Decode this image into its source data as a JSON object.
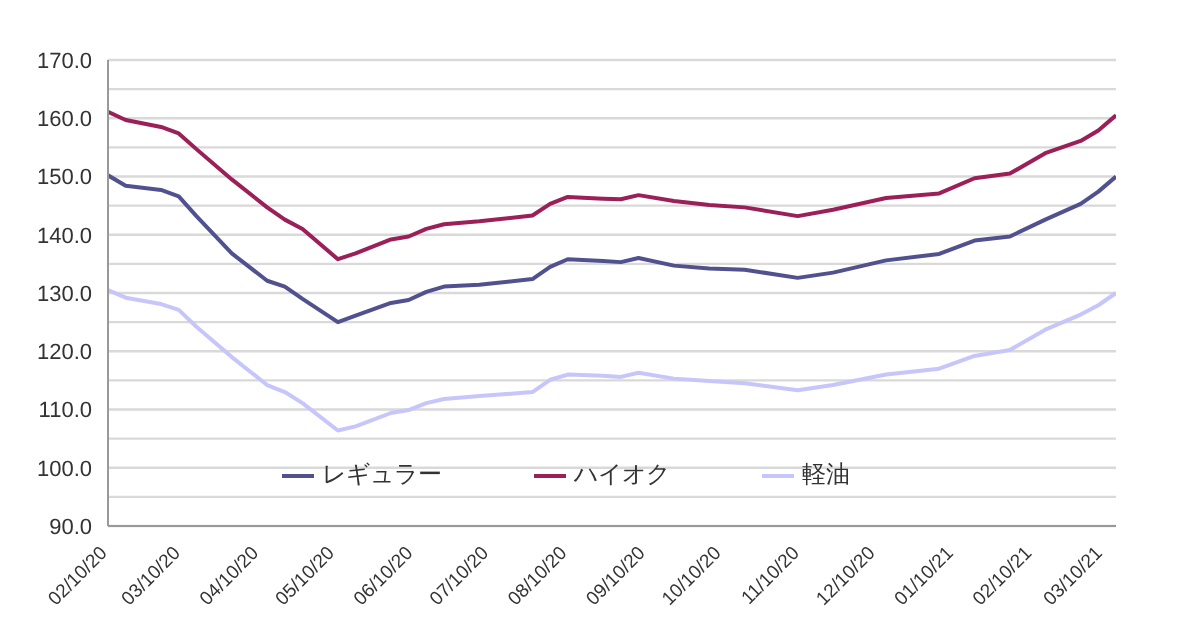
{
  "chart_data": {
    "type": "line",
    "x": [
      "2020-02-10",
      "2020-02-17",
      "2020-03-02",
      "2020-03-09",
      "2020-03-16",
      "2020-03-30",
      "2020-04-13",
      "2020-04-20",
      "2020-04-27",
      "2020-05-11",
      "2020-05-18",
      "2020-06-01",
      "2020-06-08",
      "2020-06-15",
      "2020-06-22",
      "2020-07-06",
      "2020-07-27",
      "2020-08-03",
      "2020-08-10",
      "2020-08-24",
      "2020-08-31",
      "2020-09-07",
      "2020-09-21",
      "2020-10-05",
      "2020-10-19",
      "2020-11-09",
      "2020-11-23",
      "2020-12-14",
      "2021-01-04",
      "2021-01-18",
      "2021-02-01",
      "2021-02-15",
      "2021-03-01",
      "2021-03-08",
      "2021-03-15"
    ],
    "series": [
      {
        "name": "レギュラー",
        "color": "#51518f",
        "values": [
          150.2,
          148.4,
          147.7,
          146.6,
          143.2,
          136.8,
          132.1,
          131.1,
          129,
          125,
          126.1,
          128.3,
          128.8,
          130.2,
          131.1,
          131.4,
          132.4,
          134.5,
          135.8,
          135.5,
          135.3,
          136,
          134.7,
          134.2,
          134,
          132.6,
          133.5,
          135.6,
          136.7,
          139,
          139.7,
          142.6,
          145.3,
          147.4,
          150
        ]
      },
      {
        "name": "ハイオク",
        "color": "#9b1f58",
        "values": [
          161.1,
          159.7,
          158.5,
          157.4,
          154.7,
          149.5,
          144.7,
          142.6,
          141,
          135.8,
          136.8,
          139.2,
          139.7,
          141,
          141.8,
          142.3,
          143.3,
          145.3,
          146.5,
          146.2,
          146.1,
          146.8,
          145.8,
          145.1,
          144.7,
          143.2,
          144.3,
          146.3,
          147.1,
          149.7,
          150.5,
          154,
          156.1,
          157.9,
          160.5
        ]
      },
      {
        "name": "軽油",
        "color": "#c6c6fb",
        "values": [
          130.5,
          129.2,
          128.1,
          127.1,
          124.2,
          119,
          114.2,
          113,
          111.1,
          106.4,
          107.1,
          109.4,
          109.9,
          111.1,
          111.8,
          112.3,
          113,
          115.1,
          116,
          115.8,
          115.6,
          116.3,
          115.3,
          114.9,
          114.5,
          113.3,
          114.2,
          116,
          117,
          119.2,
          120.2,
          123.7,
          126.3,
          127.9,
          130
        ]
      }
    ],
    "xlim": [
      "2020-02-10",
      "2021-03-15"
    ],
    "xticks": [
      {
        "value": "2020-02-10",
        "label": "02/10/20"
      },
      {
        "value": "2020-03-10",
        "label": "03/10/20"
      },
      {
        "value": "2020-04-10",
        "label": "04/10/20"
      },
      {
        "value": "2020-05-10",
        "label": "05/10/20"
      },
      {
        "value": "2020-06-10",
        "label": "06/10/20"
      },
      {
        "value": "2020-07-10",
        "label": "07/10/20"
      },
      {
        "value": "2020-08-10",
        "label": "08/10/20"
      },
      {
        "value": "2020-09-10",
        "label": "09/10/20"
      },
      {
        "value": "2020-10-10",
        "label": "10/10/20"
      },
      {
        "value": "2020-11-10",
        "label": "11/10/20"
      },
      {
        "value": "2020-12-10",
        "label": "12/10/20"
      },
      {
        "value": "2021-01-10",
        "label": "01/10/21"
      },
      {
        "value": "2021-02-10",
        "label": "02/10/21"
      },
      {
        "value": "2021-03-10",
        "label": "03/10/21"
      }
    ],
    "ylim": [
      90,
      170
    ],
    "yticks": [
      {
        "value": 90,
        "label": "90.0"
      },
      {
        "value": 95,
        "label": null
      },
      {
        "value": 100,
        "label": "100.0"
      },
      {
        "value": 105,
        "label": null
      },
      {
        "value": 110,
        "label": "110.0"
      },
      {
        "value": 115,
        "label": null
      },
      {
        "value": 120,
        "label": "120.0"
      },
      {
        "value": 125,
        "label": null
      },
      {
        "value": 130,
        "label": "130.0"
      },
      {
        "value": 135,
        "label": null
      },
      {
        "value": 140,
        "label": "140.0"
      },
      {
        "value": 145,
        "label": null
      },
      {
        "value": 150,
        "label": "150.0"
      },
      {
        "value": 155,
        "label": null
      },
      {
        "value": 160,
        "label": "160.0"
      },
      {
        "value": 165,
        "label": null
      },
      {
        "value": 170,
        "label": "170.0"
      }
    ],
    "grid": "y",
    "legend": "bottom",
    "marker": "none",
    "line_style": "solid"
  }
}
